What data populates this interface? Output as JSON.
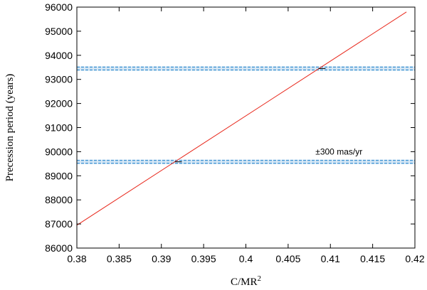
{
  "chart_data": {
    "type": "line",
    "title": "",
    "xlabel": "C/MR",
    "xlabel_superscript": "2",
    "ylabel": "Precession period (years)",
    "xlim": [
      0.38,
      0.42
    ],
    "ylim": [
      86000,
      96000
    ],
    "grid": false,
    "legend": "none",
    "x_ticks": [
      0.38,
      0.385,
      0.39,
      0.395,
      0.4,
      0.405,
      0.41,
      0.415,
      0.42
    ],
    "x_tick_labels": [
      "0.38",
      "0.385",
      "0.39",
      "0.395",
      "0.4",
      "0.405",
      "0.41",
      "0.415",
      "0.42"
    ],
    "y_ticks": [
      86000,
      87000,
      88000,
      89000,
      90000,
      91000,
      92000,
      93000,
      94000,
      95000,
      96000
    ],
    "y_tick_labels": [
      "86000",
      "87000",
      "88000",
      "89000",
      "90000",
      "91000",
      "92000",
      "93000",
      "94000",
      "95000",
      "96000"
    ],
    "series": [
      {
        "color": "#e8281c",
        "x": [
          0.38,
          0.419
        ],
        "y": [
          86950,
          95800
        ]
      }
    ],
    "bands": [
      {
        "y": 93450,
        "color": "#4f9cd6"
      },
      {
        "y": 89580,
        "color": "#4f9cd6"
      }
    ],
    "intersection_markers": [
      {
        "x": 0.392,
        "y": 89580
      },
      {
        "x": 0.409,
        "y": 93450
      }
    ],
    "annotation": {
      "text": "±300 mas/yr",
      "x": 0.41,
      "y": 90000
    }
  }
}
